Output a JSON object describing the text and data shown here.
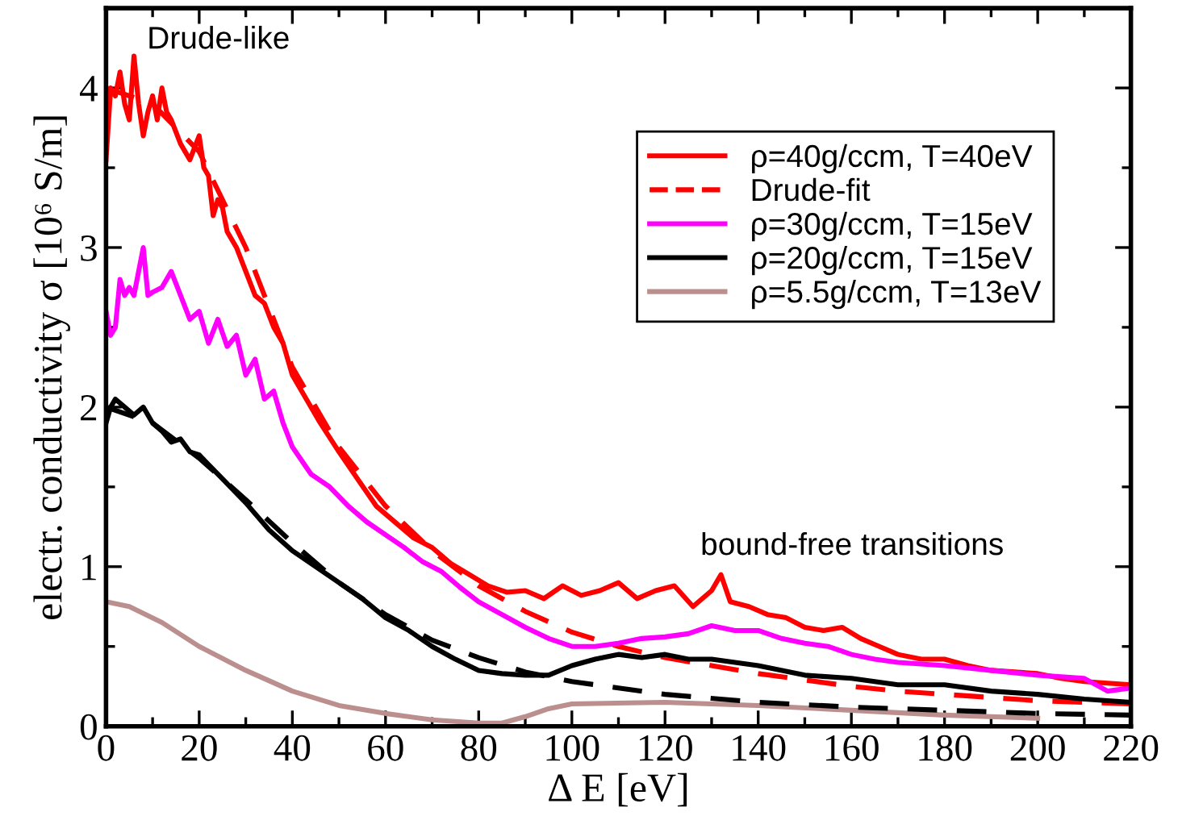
{
  "chart_data": {
    "type": "line",
    "xlabel": "Δ E [eV]",
    "ylabel": "electr. conductivity σ [10⁶ S/m]",
    "xlim": [
      0,
      220
    ],
    "xticks": [
      0,
      20,
      40,
      60,
      80,
      100,
      120,
      140,
      160,
      180,
      200,
      220
    ],
    "ylim": [
      0,
      4.5
    ],
    "yticks": [
      0,
      1,
      2,
      3,
      4
    ],
    "grid": false,
    "legend": "top right",
    "marker": "none",
    "annotations": [
      "Drude-like",
      "bound-free transitions"
    ],
    "series": [
      {
        "name": "ρ=40g/ccm, T=40eV",
        "color": "#ff0000",
        "line_style": "solid",
        "x": [
          0,
          1,
          2,
          3,
          4,
          5,
          6,
          7,
          8,
          9,
          10,
          11,
          12,
          13,
          14,
          16,
          18,
          20,
          21,
          22,
          23,
          24,
          25,
          26,
          28,
          30,
          32,
          34,
          36,
          38,
          40,
          43,
          46,
          50,
          54,
          58,
          62,
          66,
          70,
          74,
          78,
          82,
          86,
          90,
          94,
          98,
          102,
          106,
          110,
          114,
          118,
          122,
          126,
          130,
          132,
          134,
          138,
          142,
          146,
          150,
          154,
          158,
          162,
          166,
          170,
          175,
          180,
          185,
          190,
          195,
          200,
          205,
          210,
          215,
          220
        ],
        "values": [
          3.55,
          4.0,
          3.95,
          4.1,
          3.9,
          3.8,
          4.2,
          3.9,
          3.7,
          3.85,
          3.95,
          3.8,
          4.0,
          3.85,
          3.8,
          3.65,
          3.55,
          3.7,
          3.5,
          3.45,
          3.2,
          3.3,
          3.25,
          3.1,
          3.0,
          2.85,
          2.7,
          2.65,
          2.5,
          2.4,
          2.2,
          2.05,
          1.9,
          1.72,
          1.55,
          1.38,
          1.28,
          1.18,
          1.12,
          1.02,
          0.95,
          0.88,
          0.84,
          0.85,
          0.8,
          0.88,
          0.82,
          0.85,
          0.9,
          0.8,
          0.85,
          0.88,
          0.75,
          0.85,
          0.95,
          0.78,
          0.75,
          0.7,
          0.68,
          0.62,
          0.6,
          0.62,
          0.55,
          0.5,
          0.45,
          0.42,
          0.42,
          0.38,
          0.35,
          0.34,
          0.33,
          0.3,
          0.28,
          0.27,
          0.26
        ]
      },
      {
        "name": "Drude-fit",
        "color": "#ff0000",
        "line_style": "dashed",
        "x": [
          0,
          10,
          20,
          30,
          40,
          50,
          60,
          70,
          80,
          90,
          100,
          110,
          120,
          130,
          140,
          150,
          160,
          170,
          180,
          190,
          200,
          210,
          220
        ],
        "values": [
          4.0,
          3.9,
          3.6,
          3.0,
          2.25,
          1.75,
          1.38,
          1.1,
          0.88,
          0.72,
          0.59,
          0.5,
          0.43,
          0.38,
          0.33,
          0.29,
          0.25,
          0.22,
          0.2,
          0.18,
          0.16,
          0.15,
          0.14
        ]
      },
      {
        "name": "ρ=30g/ccm, T=15eV",
        "color": "#ff00ff",
        "line_style": "solid",
        "x": [
          0,
          1,
          2,
          3,
          4,
          5,
          6,
          7,
          8,
          9,
          10,
          12,
          14,
          16,
          18,
          20,
          22,
          24,
          26,
          28,
          30,
          32,
          34,
          36,
          38,
          40,
          44,
          48,
          52,
          56,
          60,
          64,
          68,
          72,
          76,
          80,
          85,
          90,
          95,
          100,
          105,
          110,
          115,
          120,
          125,
          130,
          135,
          140,
          145,
          150,
          155,
          160,
          165,
          170,
          180,
          190,
          200,
          210,
          215,
          220
        ],
        "values": [
          2.6,
          2.45,
          2.5,
          2.8,
          2.7,
          2.75,
          2.7,
          2.85,
          3.0,
          2.7,
          2.72,
          2.75,
          2.85,
          2.7,
          2.55,
          2.6,
          2.4,
          2.55,
          2.38,
          2.45,
          2.2,
          2.3,
          2.05,
          2.1,
          1.9,
          1.75,
          1.58,
          1.5,
          1.38,
          1.28,
          1.2,
          1.12,
          1.03,
          0.97,
          0.87,
          0.78,
          0.7,
          0.62,
          0.55,
          0.5,
          0.5,
          0.52,
          0.55,
          0.56,
          0.58,
          0.63,
          0.6,
          0.6,
          0.55,
          0.52,
          0.5,
          0.45,
          0.42,
          0.4,
          0.38,
          0.35,
          0.32,
          0.3,
          0.22,
          0.24
        ]
      },
      {
        "name": "ρ=20g/ccm, T=15eV",
        "color": "#000000",
        "line_style": "solid",
        "x": [
          0,
          1,
          2,
          4,
          6,
          8,
          10,
          12,
          14,
          16,
          18,
          20,
          25,
          30,
          35,
          40,
          45,
          50,
          55,
          60,
          65,
          70,
          75,
          80,
          85,
          90,
          95,
          100,
          105,
          110,
          115,
          120,
          125,
          130,
          140,
          150,
          160,
          170,
          180,
          190,
          200,
          210,
          220
        ],
        "values": [
          1.9,
          2.0,
          2.05,
          2.0,
          1.95,
          2.0,
          1.9,
          1.85,
          1.78,
          1.8,
          1.72,
          1.7,
          1.55,
          1.4,
          1.23,
          1.1,
          1.0,
          0.9,
          0.8,
          0.68,
          0.6,
          0.5,
          0.42,
          0.35,
          0.33,
          0.32,
          0.32,
          0.38,
          0.42,
          0.45,
          0.43,
          0.45,
          0.42,
          0.42,
          0.38,
          0.32,
          0.3,
          0.26,
          0.26,
          0.22,
          0.2,
          0.17,
          0.15
        ]
      },
      {
        "name": "ρ=5.5g/ccm, T=13eV",
        "color": "#bc8f8f",
        "line_style": "solid",
        "x": [
          0,
          5,
          12,
          20,
          30,
          40,
          50,
          60,
          70,
          80,
          85,
          90,
          95,
          100,
          120,
          140,
          160,
          180,
          200
        ],
        "values": [
          0.78,
          0.75,
          0.65,
          0.5,
          0.35,
          0.22,
          0.13,
          0.08,
          0.04,
          0.02,
          0.02,
          0.06,
          0.11,
          0.14,
          0.15,
          0.13,
          0.1,
          0.07,
          0.05
        ]
      },
      {
        "color": "#000000",
        "line_style": "dashed",
        "x": [
          0,
          10,
          20,
          30,
          40,
          50,
          60,
          70,
          80,
          90,
          100,
          110,
          120,
          140,
          160,
          180,
          200,
          220
        ],
        "values": [
          2.0,
          1.9,
          1.68,
          1.42,
          1.15,
          0.9,
          0.7,
          0.54,
          0.43,
          0.34,
          0.28,
          0.24,
          0.2,
          0.15,
          0.12,
          0.1,
          0.08,
          0.07
        ]
      }
    ]
  }
}
